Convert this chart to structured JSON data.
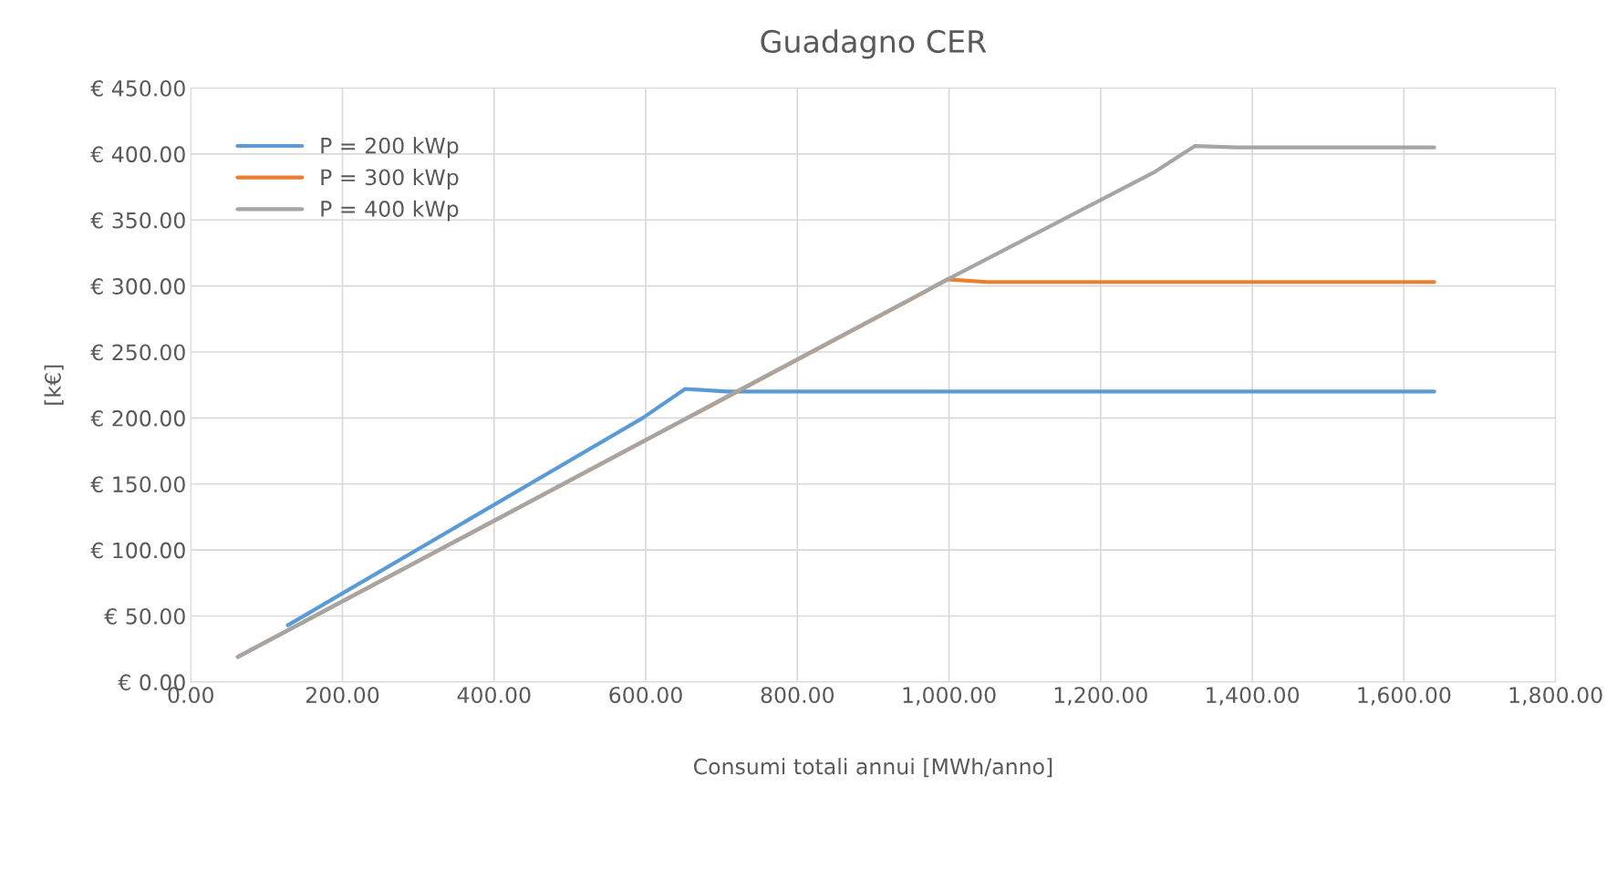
{
  "chart_data": {
    "type": "line",
    "title": "Guadagno CER",
    "xlabel": "Consumi totali annui [MWh/anno]",
    "ylabel": "[k€]",
    "series": [
      {
        "name": "P = 200 kWp",
        "color": "#5b9bd5",
        "x": [
          128,
          596,
          652,
          707,
          1640
        ],
        "values": [
          43,
          200,
          222,
          220,
          220
        ]
      },
      {
        "name": "P = 300 kWp",
        "color": "#ed7d31",
        "x": [
          62,
          960,
          998,
          1050,
          1640
        ],
        "values": [
          19,
          293,
          305,
          303,
          303
        ]
      },
      {
        "name": "P = 400 kWp",
        "color": "#a5a5a5",
        "x": [
          62,
          998,
          1270,
          1324,
          1380,
          1640
        ],
        "values": [
          19,
          305,
          386,
          406,
          405,
          405
        ]
      }
    ],
    "xlim": [
      0,
      1800
    ],
    "ylim": [
      0,
      450
    ],
    "xticks": [
      {
        "value": 0,
        "label": "0.00"
      },
      {
        "value": 200,
        "label": "200.00"
      },
      {
        "value": 400,
        "label": "400.00"
      },
      {
        "value": 600,
        "label": "600.00"
      },
      {
        "value": 800,
        "label": "800.00"
      },
      {
        "value": 1000,
        "label": "1,000.00"
      },
      {
        "value": 1200,
        "label": "1,200.00"
      },
      {
        "value": 1400,
        "label": "1,400.00"
      },
      {
        "value": 1600,
        "label": "1,600.00"
      },
      {
        "value": 1800,
        "label": "1,800.00"
      }
    ],
    "yticks": [
      {
        "value": 0,
        "label": "€ 0.00"
      },
      {
        "value": 50,
        "label": "€ 50.00"
      },
      {
        "value": 100,
        "label": "€ 100.00"
      },
      {
        "value": 150,
        "label": "€ 150.00"
      },
      {
        "value": 200,
        "label": "€ 200.00"
      },
      {
        "value": 250,
        "label": "€ 250.00"
      },
      {
        "value": 300,
        "label": "€ 300.00"
      },
      {
        "value": 350,
        "label": "€ 350.00"
      },
      {
        "value": 400,
        "label": "€ 400.00"
      },
      {
        "value": 450,
        "label": "€ 450.00"
      }
    ],
    "grid": true,
    "legend": "top left",
    "line_style": "solid",
    "marker": "none"
  }
}
